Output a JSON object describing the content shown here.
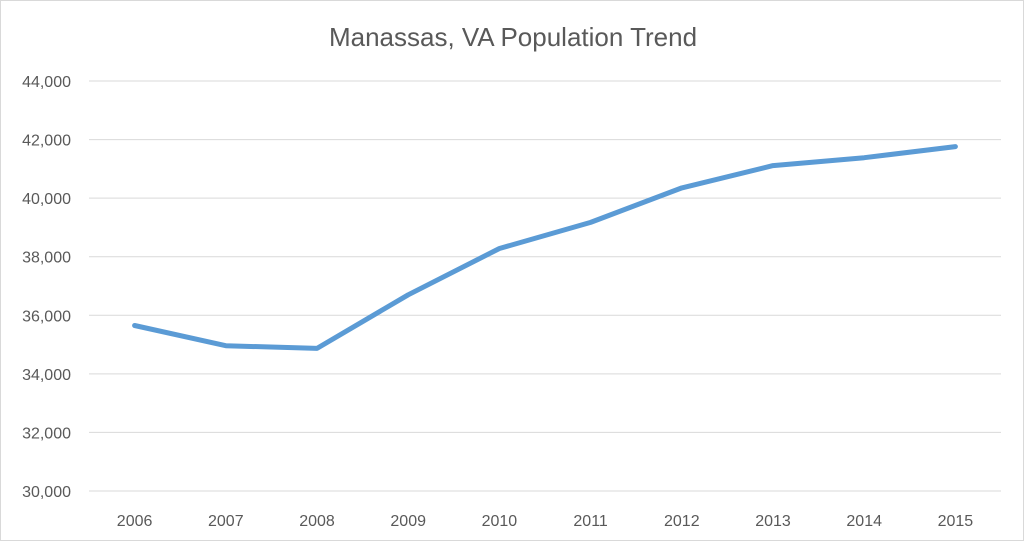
{
  "chart_data": {
    "type": "line",
    "title": "Manassas, VA Population Trend",
    "xlabel": "",
    "ylabel": "",
    "categories": [
      "2006",
      "2007",
      "2008",
      "2009",
      "2010",
      "2011",
      "2012",
      "2013",
      "2014",
      "2015"
    ],
    "series": [
      {
        "values": [
          35650,
          34960,
          34870,
          36700,
          38280,
          39170,
          40350,
          41110,
          41380,
          41760
        ],
        "color": "#5b9bd5"
      }
    ],
    "ylim": [
      30000,
      44000
    ],
    "yticks": [
      "30,000",
      "32,000",
      "34,000",
      "36,000",
      "38,000",
      "40,000",
      "42,000",
      "44,000"
    ],
    "ytick_values": [
      30000,
      32000,
      34000,
      36000,
      38000,
      40000,
      42000,
      44000
    ],
    "grid": true,
    "legend": "none"
  }
}
